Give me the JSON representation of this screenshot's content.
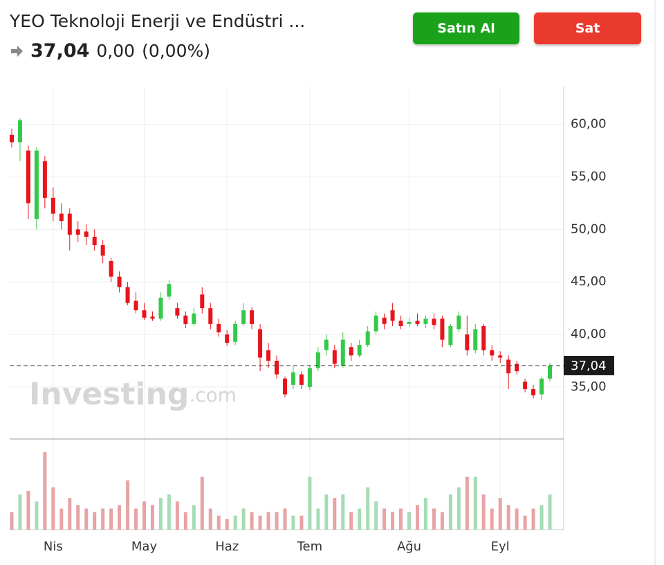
{
  "header": {
    "title": "YEO Teknoloji Enerji ve Endüstri ...",
    "price": "37,04",
    "change": "0,00",
    "change_percent": "(0,00%)",
    "buy_button": "Satın Al",
    "sell_button": "Sat"
  },
  "chart_data": {
    "type": "candlestick",
    "watermark": {
      "brand": "Investing",
      "suffix": ".com"
    },
    "categories": [
      null,
      null,
      null,
      null,
      null,
      "Nis",
      null,
      null,
      null,
      null,
      null,
      null,
      null,
      null,
      null,
      null,
      "May",
      null,
      null,
      null,
      null,
      null,
      null,
      null,
      null,
      null,
      "Haz",
      null,
      null,
      null,
      null,
      null,
      null,
      null,
      null,
      null,
      "Tem",
      null,
      null,
      null,
      null,
      null,
      null,
      null,
      null,
      null,
      null,
      null,
      "Ağu",
      null,
      null,
      null,
      null,
      null,
      null,
      null,
      null,
      null,
      null,
      "Eyl",
      null,
      null,
      null,
      null,
      null,
      null
    ],
    "open": [
      59,
      58.3,
      57.5,
      51,
      56.5,
      53,
      51.5,
      51.5,
      50,
      49.8,
      49.3,
      48.5,
      47,
      45.5,
      44.5,
      43.2,
      42.3,
      41.7,
      41.5,
      43.6,
      42.5,
      41.8,
      41,
      43.8,
      42.5,
      41,
      40,
      39.3,
      41,
      42.3,
      40.5,
      38.5,
      37.5,
      35.8,
      35.2,
      36.2,
      35,
      36.8,
      38.5,
      38.5,
      37,
      38.8,
      38,
      39,
      40.3,
      41.6,
      42.3,
      41.3,
      41,
      41.3,
      41,
      41.5,
      41.5,
      39,
      40.5,
      40,
      38.5,
      40.8,
      38.5,
      38,
      37.6,
      37.2,
      35.5,
      34.8,
      34.3,
      35.8
    ],
    "high": [
      59.6,
      60.6,
      58,
      57.8,
      57,
      54,
      52.5,
      52,
      50.8,
      50.5,
      50,
      49,
      47.3,
      46,
      45,
      44,
      43,
      42.2,
      44,
      45.2,
      43,
      42.2,
      42.5,
      44.5,
      43,
      41.5,
      40.4,
      41.3,
      43,
      42.6,
      41,
      39.2,
      38,
      36,
      37,
      36.5,
      37,
      38.8,
      40,
      39,
      40.2,
      39.2,
      39.5,
      40.8,
      42.2,
      42,
      43,
      41.8,
      41.6,
      42,
      41.8,
      42,
      41.8,
      41,
      42.2,
      41.8,
      41,
      41,
      39,
      38.4,
      38,
      37.5,
      35.8,
      35.2,
      36,
      37.3
    ],
    "low": [
      57.8,
      56.5,
      51,
      50,
      52,
      50.8,
      50,
      48,
      48.8,
      48.5,
      48,
      46.8,
      45,
      44,
      42.8,
      42,
      41.4,
      41.3,
      41.3,
      43.3,
      41.5,
      40.6,
      40.8,
      42,
      40.5,
      39.8,
      38.9,
      39,
      40.8,
      40.5,
      36.5,
      36.8,
      35.8,
      34,
      34.8,
      34.8,
      34.7,
      36.5,
      38,
      36.8,
      36.8,
      37.5,
      37.8,
      38.8,
      40,
      40.5,
      40.8,
      40.5,
      40.7,
      40.8,
      40.6,
      40.5,
      38.8,
      38.8,
      40.2,
      38,
      38.2,
      38,
      37.5,
      37.3,
      34.8,
      36.2,
      34.5,
      33.9,
      33.8,
      35.5
    ],
    "close": [
      58.3,
      60.4,
      52.5,
      57.5,
      53,
      51.5,
      50.8,
      49.5,
      49.5,
      49.3,
      48.5,
      47.5,
      45.5,
      44.5,
      43,
      42.3,
      41.6,
      41.5,
      43.5,
      44.8,
      41.8,
      41,
      42,
      42.5,
      41,
      40.2,
      39.2,
      41,
      42.3,
      41,
      37.8,
      37.5,
      36.2,
      34.3,
      36.4,
      35.2,
      36.8,
      38.3,
      39.5,
      37.2,
      39.5,
      38,
      39,
      40.3,
      41.8,
      41,
      41.3,
      40.8,
      41.2,
      41,
      41.5,
      40.9,
      39.5,
      40.8,
      41.8,
      38.5,
      40.5,
      38.5,
      38,
      37.8,
      36.3,
      36.5,
      34.8,
      34.2,
      35.8,
      37.04
    ],
    "volume": [
      25,
      50,
      55,
      40,
      110,
      60,
      30,
      45,
      35,
      30,
      25,
      30,
      30,
      35,
      70,
      30,
      40,
      35,
      45,
      50,
      40,
      25,
      35,
      75,
      30,
      20,
      15,
      20,
      30,
      25,
      20,
      25,
      25,
      30,
      20,
      20,
      75,
      30,
      50,
      45,
      50,
      25,
      30,
      60,
      40,
      30,
      25,
      30,
      25,
      35,
      45,
      30,
      25,
      50,
      60,
      75,
      75,
      50,
      30,
      45,
      35,
      30,
      20,
      30,
      35,
      50
    ],
    "up_color": "#35c94a",
    "down_color": "#e8141c",
    "volume_up_color": "#a6dcb5",
    "volume_down_color": "#e7a3a5",
    "ylim": [
      30.05,
      63.6
    ],
    "yticks": [
      {
        "value": 35,
        "label": "35,00"
      },
      {
        "value": 40,
        "label": "40,00"
      },
      {
        "value": 45,
        "label": "45,00"
      },
      {
        "value": 50,
        "label": "50,00"
      },
      {
        "value": 55,
        "label": "55,00"
      },
      {
        "value": 60,
        "label": "60,00"
      }
    ],
    "last_price": {
      "value": 37.04,
      "label": "37,04"
    },
    "grid": true
  }
}
